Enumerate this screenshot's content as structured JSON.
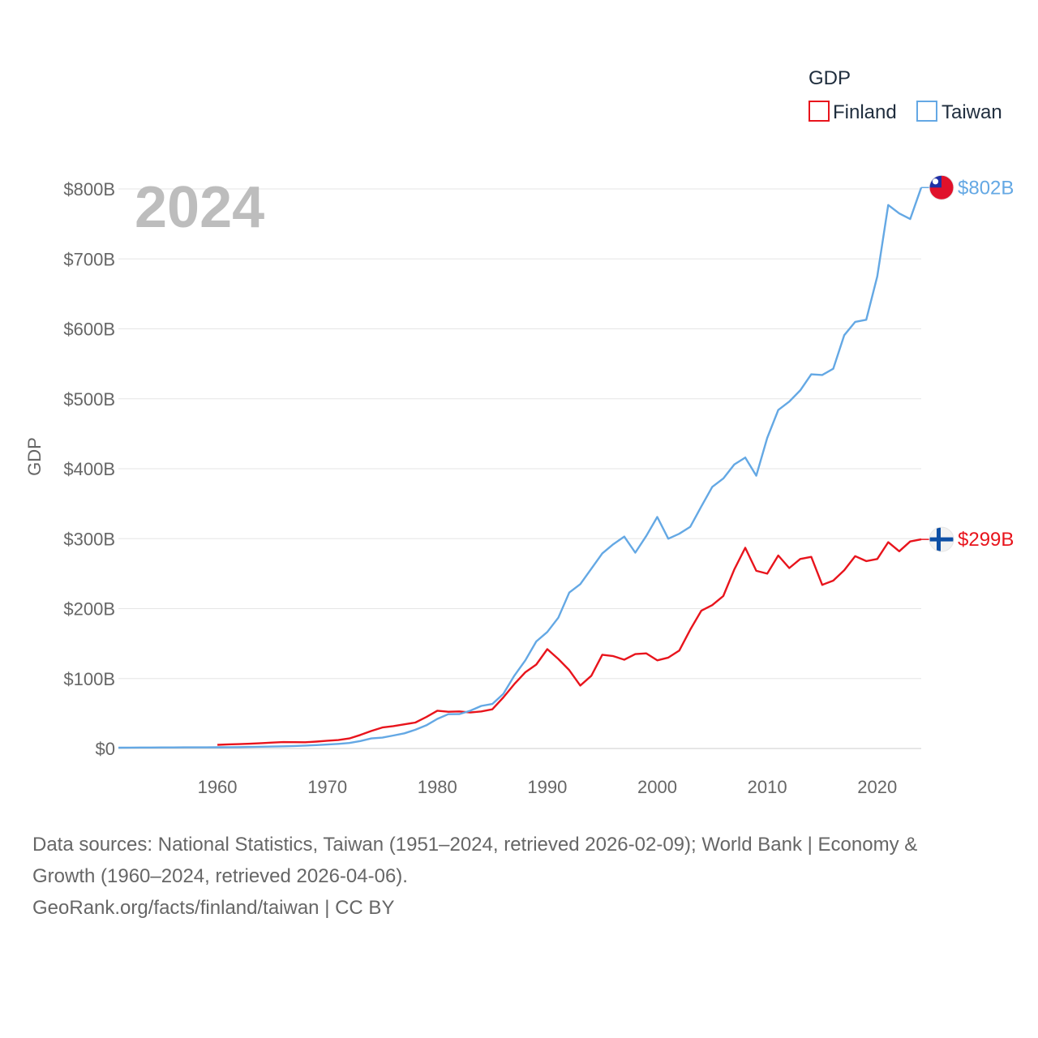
{
  "chart_data": {
    "type": "line",
    "title": "",
    "year_label": "2024",
    "ylabel": "GDP",
    "xlabel": "",
    "xlim": [
      1951,
      2024
    ],
    "ylim": [
      0,
      800
    ],
    "y_unit": "billion USD",
    "x_ticks": [
      1960,
      1970,
      1980,
      1990,
      2000,
      2010,
      2020
    ],
    "x_tick_labels": [
      "1960",
      "1970",
      "1980",
      "1990",
      "2000",
      "2010",
      "2020"
    ],
    "y_ticks": [
      0,
      100,
      200,
      300,
      400,
      500,
      600,
      700,
      800
    ],
    "y_tick_labels": [
      "$0",
      "$100B",
      "$200B",
      "$300B",
      "$400B",
      "$500B",
      "$600B",
      "$700B",
      "$800B"
    ],
    "legend": {
      "title": "GDP",
      "position": "top-right"
    },
    "series": [
      {
        "name": "Finland",
        "color": "#e8141c",
        "end_label": "$299B",
        "flag": "finland-flag",
        "x": [
          1960,
          1961,
          1962,
          1963,
          1964,
          1965,
          1966,
          1967,
          1968,
          1969,
          1970,
          1971,
          1972,
          1973,
          1974,
          1975,
          1976,
          1977,
          1978,
          1979,
          1980,
          1981,
          1982,
          1983,
          1984,
          1985,
          1986,
          1987,
          1988,
          1989,
          1990,
          1991,
          1992,
          1993,
          1994,
          1995,
          1996,
          1997,
          1998,
          1999,
          2000,
          2001,
          2002,
          2003,
          2004,
          2005,
          2006,
          2007,
          2008,
          2009,
          2010,
          2011,
          2012,
          2013,
          2014,
          2015,
          2016,
          2017,
          2018,
          2019,
          2020,
          2021,
          2022,
          2023,
          2024
        ],
        "values": [
          5.2,
          5.9,
          6.3,
          6.8,
          7.7,
          8.5,
          9.2,
          9.0,
          8.9,
          9.9,
          11.1,
          12.0,
          14.4,
          19.4,
          25.0,
          30.0,
          32.0,
          34.5,
          37.1,
          45.0,
          54.0,
          52.5,
          53.0,
          51.5,
          53.0,
          56.0,
          73.0,
          92.0,
          109.0,
          120.0,
          142.0,
          128.0,
          112.0,
          90.0,
          104.0,
          134.0,
          132.0,
          127.0,
          135.0,
          136.0,
          126.0,
          130.0,
          140.0,
          170.0,
          197.0,
          205.0,
          218.0,
          256.0,
          287.0,
          254.0,
          250.0,
          276.0,
          258.0,
          271.0,
          274.0,
          234.0,
          240.0,
          255.0,
          275.0,
          268.0,
          271.0,
          295.0,
          282.0,
          296.0,
          299.0
        ]
      },
      {
        "name": "Taiwan",
        "color": "#64a8e4",
        "end_label": "$802B",
        "flag": "taiwan-flag",
        "x": [
          1951,
          1952,
          1953,
          1954,
          1955,
          1956,
          1957,
          1958,
          1959,
          1960,
          1961,
          1962,
          1963,
          1964,
          1965,
          1966,
          1967,
          1968,
          1969,
          1970,
          1971,
          1972,
          1973,
          1974,
          1975,
          1976,
          1977,
          1978,
          1979,
          1980,
          1981,
          1982,
          1983,
          1984,
          1985,
          1986,
          1987,
          1988,
          1989,
          1990,
          1991,
          1992,
          1993,
          1994,
          1995,
          1996,
          1997,
          1998,
          1999,
          2000,
          2001,
          2002,
          2003,
          2004,
          2005,
          2006,
          2007,
          2008,
          2009,
          2010,
          2011,
          2012,
          2013,
          2014,
          2015,
          2016,
          2017,
          2018,
          2019,
          2020,
          2021,
          2022,
          2023,
          2024
        ],
        "values": [
          1.2,
          1.3,
          1.4,
          1.4,
          1.5,
          1.5,
          1.6,
          1.6,
          1.6,
          1.7,
          1.8,
          2.0,
          2.2,
          2.5,
          2.8,
          3.1,
          3.6,
          4.2,
          4.9,
          5.7,
          6.6,
          7.9,
          10.7,
          14.4,
          15.5,
          18.6,
          21.7,
          26.8,
          33.2,
          42.3,
          49.0,
          49.2,
          54.0,
          60.9,
          63.6,
          78.2,
          104.0,
          126.0,
          153.0,
          166.6,
          187.0,
          223.0,
          235.0,
          257.0,
          279.0,
          292.0,
          303.0,
          280.0,
          304.0,
          331.0,
          300.0,
          307.0,
          317.0,
          346.0,
          374.0,
          386.0,
          406.0,
          416.0,
          390.0,
          444.0,
          484.0,
          496.0,
          512.0,
          535.0,
          534.0,
          543.0,
          591.0,
          610.0,
          613.0,
          675.0,
          777.0,
          765.0,
          757.0,
          802.0
        ]
      }
    ]
  },
  "footer": {
    "line1": "Data sources: National Statistics, Taiwan (1951–2024, retrieved 2026-02-09); World Bank | Economy &",
    "line2": "Growth (1960–2024, retrieved 2026-04-06).",
    "line3": "GeoRank.org/facts/finland/taiwan | CC BY"
  }
}
